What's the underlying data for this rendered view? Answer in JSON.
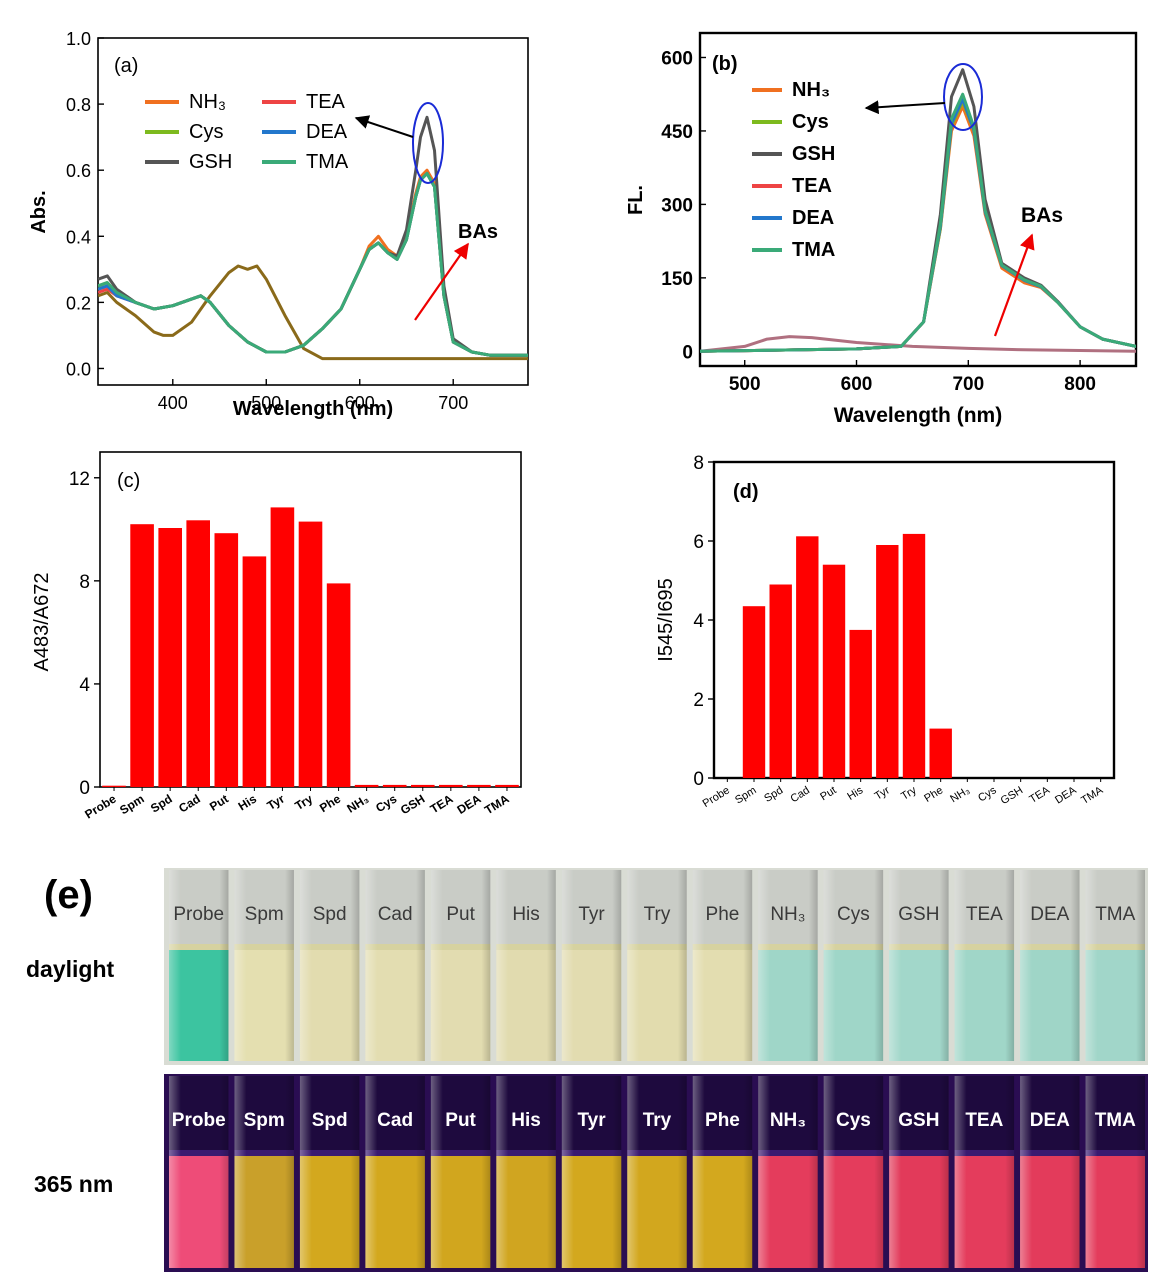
{
  "chart_data": [
    {
      "type": "line",
      "panel_label": "(a)",
      "xlabel": "Wavelength (nm)",
      "ylabel": "Abs.",
      "xlim": [
        320,
        780
      ],
      "ylim": [
        -0.05,
        1.0
      ],
      "xticks": [
        "400",
        "500",
        "600",
        "700"
      ],
      "yticks": [
        "0.0",
        "0.2",
        "0.4",
        "0.6",
        "0.8",
        "1.0"
      ],
      "legend": [
        {
          "name": "NH₃",
          "color": "#f07020"
        },
        {
          "name": "TEA",
          "color": "#ee4444"
        },
        {
          "name": "Cys",
          "color": "#7dba1e"
        },
        {
          "name": "DEA",
          "color": "#2277cc"
        },
        {
          "name": "GSH",
          "color": "#555555"
        },
        {
          "name": "TMA",
          "color": "#3aaa78"
        }
      ],
      "annotations": [
        "BAs"
      ],
      "series": [
        {
          "name": "NH₃",
          "color": "#f07020",
          "x": [
            320,
            330,
            340,
            360,
            380,
            400,
            420,
            430,
            440,
            460,
            480,
            500,
            520,
            540,
            560,
            580,
            600,
            610,
            620,
            630,
            640,
            650,
            660,
            665,
            672,
            680,
            690,
            700,
            720,
            740,
            780
          ],
          "values": [
            0.24,
            0.25,
            0.23,
            0.2,
            0.18,
            0.19,
            0.21,
            0.22,
            0.2,
            0.13,
            0.08,
            0.05,
            0.05,
            0.07,
            0.12,
            0.18,
            0.3,
            0.37,
            0.4,
            0.36,
            0.34,
            0.4,
            0.53,
            0.58,
            0.6,
            0.56,
            0.22,
            0.08,
            0.05,
            0.04,
            0.04
          ]
        },
        {
          "name": "TEA",
          "color": "#ee4444",
          "x": [
            320,
            330,
            340,
            360,
            380,
            400,
            420,
            430,
            440,
            460,
            480,
            500,
            520,
            540,
            560,
            580,
            600,
            610,
            620,
            630,
            640,
            650,
            660,
            665,
            672,
            680,
            690,
            700,
            720,
            740,
            780
          ],
          "values": [
            0.23,
            0.24,
            0.22,
            0.2,
            0.18,
            0.19,
            0.21,
            0.22,
            0.2,
            0.13,
            0.08,
            0.05,
            0.05,
            0.07,
            0.12,
            0.18,
            0.3,
            0.36,
            0.38,
            0.35,
            0.33,
            0.39,
            0.52,
            0.57,
            0.59,
            0.55,
            0.22,
            0.08,
            0.05,
            0.04,
            0.04
          ]
        },
        {
          "name": "Cys",
          "color": "#7dba1e",
          "x": [
            320,
            330,
            340,
            360,
            380,
            400,
            420,
            430,
            440,
            460,
            480,
            500,
            520,
            540,
            560,
            580,
            600,
            610,
            620,
            630,
            640,
            650,
            660,
            665,
            672,
            680,
            690,
            700,
            720,
            740,
            780
          ],
          "values": [
            0.25,
            0.26,
            0.23,
            0.2,
            0.18,
            0.19,
            0.21,
            0.22,
            0.2,
            0.13,
            0.08,
            0.05,
            0.05,
            0.07,
            0.12,
            0.18,
            0.3,
            0.36,
            0.38,
            0.35,
            0.33,
            0.39,
            0.52,
            0.57,
            0.59,
            0.55,
            0.22,
            0.08,
            0.05,
            0.04,
            0.04
          ]
        },
        {
          "name": "DEA",
          "color": "#2277cc",
          "x": [
            320,
            330,
            340,
            360,
            380,
            400,
            420,
            430,
            440,
            460,
            480,
            500,
            520,
            540,
            560,
            580,
            600,
            610,
            620,
            630,
            640,
            650,
            660,
            665,
            672,
            680,
            690,
            700,
            720,
            740,
            780
          ],
          "values": [
            0.24,
            0.25,
            0.22,
            0.2,
            0.18,
            0.19,
            0.21,
            0.22,
            0.2,
            0.13,
            0.08,
            0.05,
            0.05,
            0.07,
            0.12,
            0.18,
            0.3,
            0.36,
            0.38,
            0.35,
            0.33,
            0.39,
            0.52,
            0.57,
            0.59,
            0.55,
            0.22,
            0.08,
            0.05,
            0.04,
            0.04
          ]
        },
        {
          "name": "GSH",
          "color": "#555555",
          "x": [
            320,
            330,
            340,
            360,
            380,
            400,
            420,
            430,
            440,
            460,
            480,
            500,
            520,
            540,
            560,
            580,
            600,
            610,
            620,
            630,
            640,
            650,
            660,
            665,
            672,
            680,
            690,
            700,
            720,
            740,
            780
          ],
          "values": [
            0.27,
            0.28,
            0.24,
            0.2,
            0.18,
            0.19,
            0.21,
            0.22,
            0.2,
            0.13,
            0.08,
            0.05,
            0.05,
            0.07,
            0.12,
            0.18,
            0.3,
            0.36,
            0.38,
            0.35,
            0.34,
            0.42,
            0.6,
            0.7,
            0.76,
            0.66,
            0.25,
            0.09,
            0.05,
            0.04,
            0.04
          ]
        },
        {
          "name": "TMA",
          "color": "#3aaa78",
          "x": [
            320,
            330,
            340,
            360,
            380,
            400,
            420,
            430,
            440,
            460,
            480,
            500,
            520,
            540,
            560,
            580,
            600,
            610,
            620,
            630,
            640,
            650,
            660,
            665,
            672,
            680,
            690,
            700,
            720,
            740,
            780
          ],
          "values": [
            0.25,
            0.26,
            0.23,
            0.2,
            0.18,
            0.19,
            0.21,
            0.22,
            0.2,
            0.13,
            0.08,
            0.05,
            0.05,
            0.07,
            0.12,
            0.18,
            0.3,
            0.36,
            0.38,
            0.35,
            0.33,
            0.39,
            0.52,
            0.57,
            0.59,
            0.55,
            0.22,
            0.08,
            0.05,
            0.04,
            0.04
          ]
        },
        {
          "name": "BAs",
          "color": "#8a6a1a",
          "x": [
            320,
            330,
            340,
            360,
            380,
            390,
            400,
            420,
            440,
            460,
            470,
            480,
            490,
            500,
            520,
            540,
            560,
            600,
            700,
            780
          ],
          "values": [
            0.22,
            0.23,
            0.2,
            0.16,
            0.11,
            0.1,
            0.1,
            0.14,
            0.22,
            0.29,
            0.31,
            0.3,
            0.31,
            0.27,
            0.16,
            0.06,
            0.03,
            0.03,
            0.03,
            0.03
          ]
        }
      ]
    },
    {
      "type": "line",
      "panel_label": "(b)",
      "xlabel": "Wavelength (nm)",
      "ylabel": "FL.",
      "xlim": [
        460,
        850
      ],
      "ylim": [
        -30,
        650
      ],
      "xticks": [
        "500",
        "600",
        "700",
        "800"
      ],
      "yticks": [
        "0",
        "150",
        "300",
        "450",
        "600"
      ],
      "legend": [
        {
          "name": "NH₃",
          "color": "#f07020"
        },
        {
          "name": "Cys",
          "color": "#7dba1e"
        },
        {
          "name": "GSH",
          "color": "#555555"
        },
        {
          "name": "TEA",
          "color": "#ee4444"
        },
        {
          "name": "DEA",
          "color": "#2277cc"
        },
        {
          "name": "TMA",
          "color": "#3aaa78"
        }
      ],
      "annotations": [
        "BAs"
      ],
      "series": [
        {
          "name": "NH₃",
          "color": "#f07020",
          "x": [
            460,
            600,
            640,
            660,
            675,
            685,
            695,
            705,
            715,
            730,
            750,
            765,
            780,
            800,
            820,
            850
          ],
          "values": [
            0,
            5,
            10,
            60,
            250,
            450,
            500,
            440,
            280,
            170,
            140,
            130,
            100,
            50,
            25,
            10
          ]
        },
        {
          "name": "Cys",
          "color": "#7dba1e",
          "x": [
            460,
            600,
            640,
            660,
            675,
            685,
            695,
            705,
            715,
            730,
            750,
            765,
            780,
            800,
            820,
            850
          ],
          "values": [
            0,
            5,
            10,
            60,
            250,
            460,
            510,
            450,
            285,
            175,
            145,
            132,
            100,
            50,
            25,
            10
          ]
        },
        {
          "name": "GSH",
          "color": "#555555",
          "x": [
            460,
            600,
            640,
            660,
            675,
            685,
            695,
            705,
            715,
            730,
            750,
            765,
            780,
            800,
            820,
            850
          ],
          "values": [
            0,
            5,
            10,
            60,
            280,
            520,
            575,
            500,
            310,
            180,
            150,
            135,
            102,
            50,
            25,
            10
          ]
        },
        {
          "name": "TEA",
          "color": "#ee4444",
          "x": [
            460,
            600,
            640,
            660,
            675,
            685,
            695,
            705,
            715,
            730,
            750,
            765,
            780,
            800,
            820,
            850
          ],
          "values": [
            0,
            5,
            10,
            60,
            255,
            465,
            515,
            452,
            285,
            175,
            145,
            132,
            100,
            50,
            25,
            10
          ]
        },
        {
          "name": "DEA",
          "color": "#2277cc",
          "x": [
            460,
            600,
            640,
            660,
            675,
            685,
            695,
            705,
            715,
            730,
            750,
            765,
            780,
            800,
            820,
            850
          ],
          "values": [
            0,
            5,
            10,
            60,
            255,
            465,
            515,
            452,
            285,
            175,
            145,
            132,
            100,
            50,
            25,
            10
          ]
        },
        {
          "name": "TMA",
          "color": "#3aaa78",
          "x": [
            460,
            600,
            640,
            660,
            675,
            685,
            695,
            705,
            715,
            730,
            750,
            765,
            780,
            800,
            820,
            850
          ],
          "values": [
            0,
            5,
            10,
            60,
            260,
            475,
            525,
            458,
            288,
            176,
            146,
            133,
            100,
            50,
            25,
            10
          ]
        },
        {
          "name": "BAs",
          "color": "#b07080",
          "x": [
            460,
            500,
            520,
            540,
            560,
            600,
            650,
            700,
            750,
            850
          ],
          "values": [
            0,
            10,
            25,
            30,
            28,
            18,
            10,
            6,
            3,
            0
          ]
        }
      ]
    },
    {
      "type": "bar",
      "panel_label": "(c)",
      "ylabel": "A483/A672",
      "ylim": [
        0,
        13
      ],
      "yticks": [
        "0",
        "4",
        "8",
        "12"
      ],
      "categories": [
        "Probe",
        "Spm",
        "Spd",
        "Cad",
        "Put",
        "His",
        "Tyr",
        "Try",
        "Phe",
        "NH₃",
        "Cys",
        "GSH",
        "TEA",
        "DEA",
        "TMA"
      ],
      "values": [
        0.05,
        10.2,
        10.05,
        10.35,
        9.85,
        8.95,
        10.85,
        10.3,
        7.9,
        0.08,
        0.08,
        0.08,
        0.08,
        0.08,
        0.08
      ],
      "color": "#ff0000"
    },
    {
      "type": "bar",
      "panel_label": "(d)",
      "ylabel": "I545/I695",
      "ylim": [
        0,
        8
      ],
      "yticks": [
        "0",
        "2",
        "4",
        "6",
        "8"
      ],
      "categories": [
        "Probe",
        "Spm",
        "Spd",
        "Cad",
        "Put",
        "His",
        "Tyr",
        "Try",
        "Phe",
        "NH₃",
        "Cys",
        "GSH",
        "TEA",
        "DEA",
        "TMA"
      ],
      "values": [
        0,
        4.35,
        4.9,
        6.12,
        5.4,
        3.75,
        5.9,
        6.18,
        1.25,
        0,
        0,
        0,
        0,
        0,
        0
      ],
      "color": "#ff0000"
    }
  ],
  "panel_e": {
    "label": "(e)",
    "rows": [
      "daylight",
      "365 nm"
    ],
    "samples": [
      "Probe",
      "Spm",
      "Spd",
      "Cad",
      "Put",
      "His",
      "Tyr",
      "Try",
      "Phe",
      "NH₃",
      "Cys",
      "GSH",
      "TEA",
      "DEA",
      "TMA"
    ],
    "daylight_colors": [
      "#3cc4a0",
      "#e4dfb0",
      "#e2dcaf",
      "#e3ddb1",
      "#e2dcb0",
      "#e1dbaf",
      "#e2dcb0",
      "#e2dcae",
      "#e3ddb0",
      "#9fd6c8",
      "#9fd6c8",
      "#a2d7ca",
      "#a0d6c8",
      "#9fd5c7",
      "#a1d6c9"
    ],
    "uv_colors": [
      "#ee4c78",
      "#c9a02a",
      "#d3a81e",
      "#d3a81e",
      "#d1a61e",
      "#d0a520",
      "#d3a81e",
      "#d2a71e",
      "#d3a81e",
      "#e43c5c",
      "#e43c5c",
      "#e23a5a",
      "#e43c5c",
      "#e33b5b",
      "#e43c5c"
    ]
  }
}
